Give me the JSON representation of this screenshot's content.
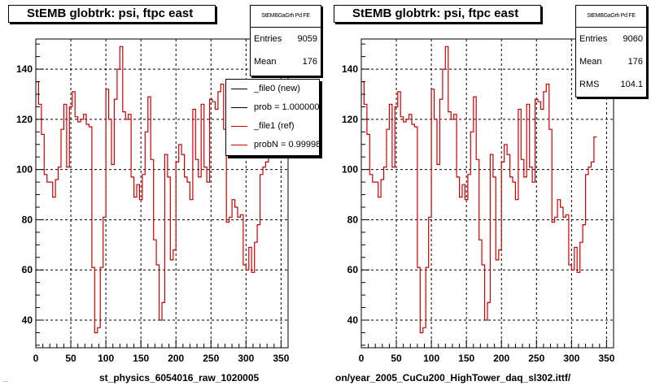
{
  "pads": [
    {
      "title": "StEMB globtrk: psi, ftpc east",
      "stats": {
        "header": "StEMBGaGrh Pd FE",
        "rows": [
          {
            "label": "Entries",
            "value": "9059"
          },
          {
            "label": "Mean",
            "value": "176"
          }
        ]
      },
      "legend": [
        {
          "label": "_file0 (new)",
          "color": "#000000"
        },
        {
          "label": "prob = 1.000000",
          "color": "#000000"
        },
        {
          "label": "_file1 (ref)",
          "color": "#cc0000"
        },
        {
          "label": "probN = 0.999988",
          "color": "#cc0000"
        }
      ],
      "xtitle": "st_physics_6054016_raw_1020005"
    },
    {
      "title": "StEMB globtrk: psi, ftpc east",
      "stats": {
        "header": "StEMBGaGrh Pd FE",
        "rows": [
          {
            "label": "Entries",
            "value": "9060"
          },
          {
            "label": "Mean",
            "value": "176"
          },
          {
            "label": "RMS",
            "value": "104.1"
          }
        ]
      },
      "xtitle": "on/year_2005_CuCu200_HighTower_daq_sl302.ittf/"
    }
  ],
  "footer": "...",
  "chart_data": {
    "type": "line",
    "step": true,
    "xlim": [
      0,
      360
    ],
    "ylim": [
      29,
      152
    ],
    "xticks": [
      0,
      50,
      100,
      150,
      200,
      250,
      300,
      350
    ],
    "yticks": [
      40,
      60,
      80,
      100,
      120,
      140
    ],
    "grid": true,
    "bin_width": 4,
    "series": [
      {
        "name": "_file1 (ref)",
        "color": "#cc0000",
        "values": [
          135,
          126,
          114,
          98,
          95,
          95,
          89,
          96,
          101,
          116,
          126,
          101,
          125,
          131,
          121,
          119,
          120,
          122,
          118,
          117,
          61,
          35,
          37,
          61,
          81,
          132,
          120,
          102,
          128,
          140,
          149,
          123,
          120,
          122,
          97,
          89,
          94,
          88,
          98,
          115,
          129,
          104,
          72,
          62,
          40,
          47,
          106,
          97,
          64,
          68,
          103,
          110,
          106,
          97,
          95,
          88,
          124,
          104,
          97,
          126,
          101,
          95,
          128,
          127,
          124,
          131,
          134,
          116,
          79,
          81,
          88,
          85,
          81,
          82,
          62,
          60,
          69,
          59,
          71,
          78,
          98,
          101,
          103,
          113
        ]
      }
    ]
  }
}
